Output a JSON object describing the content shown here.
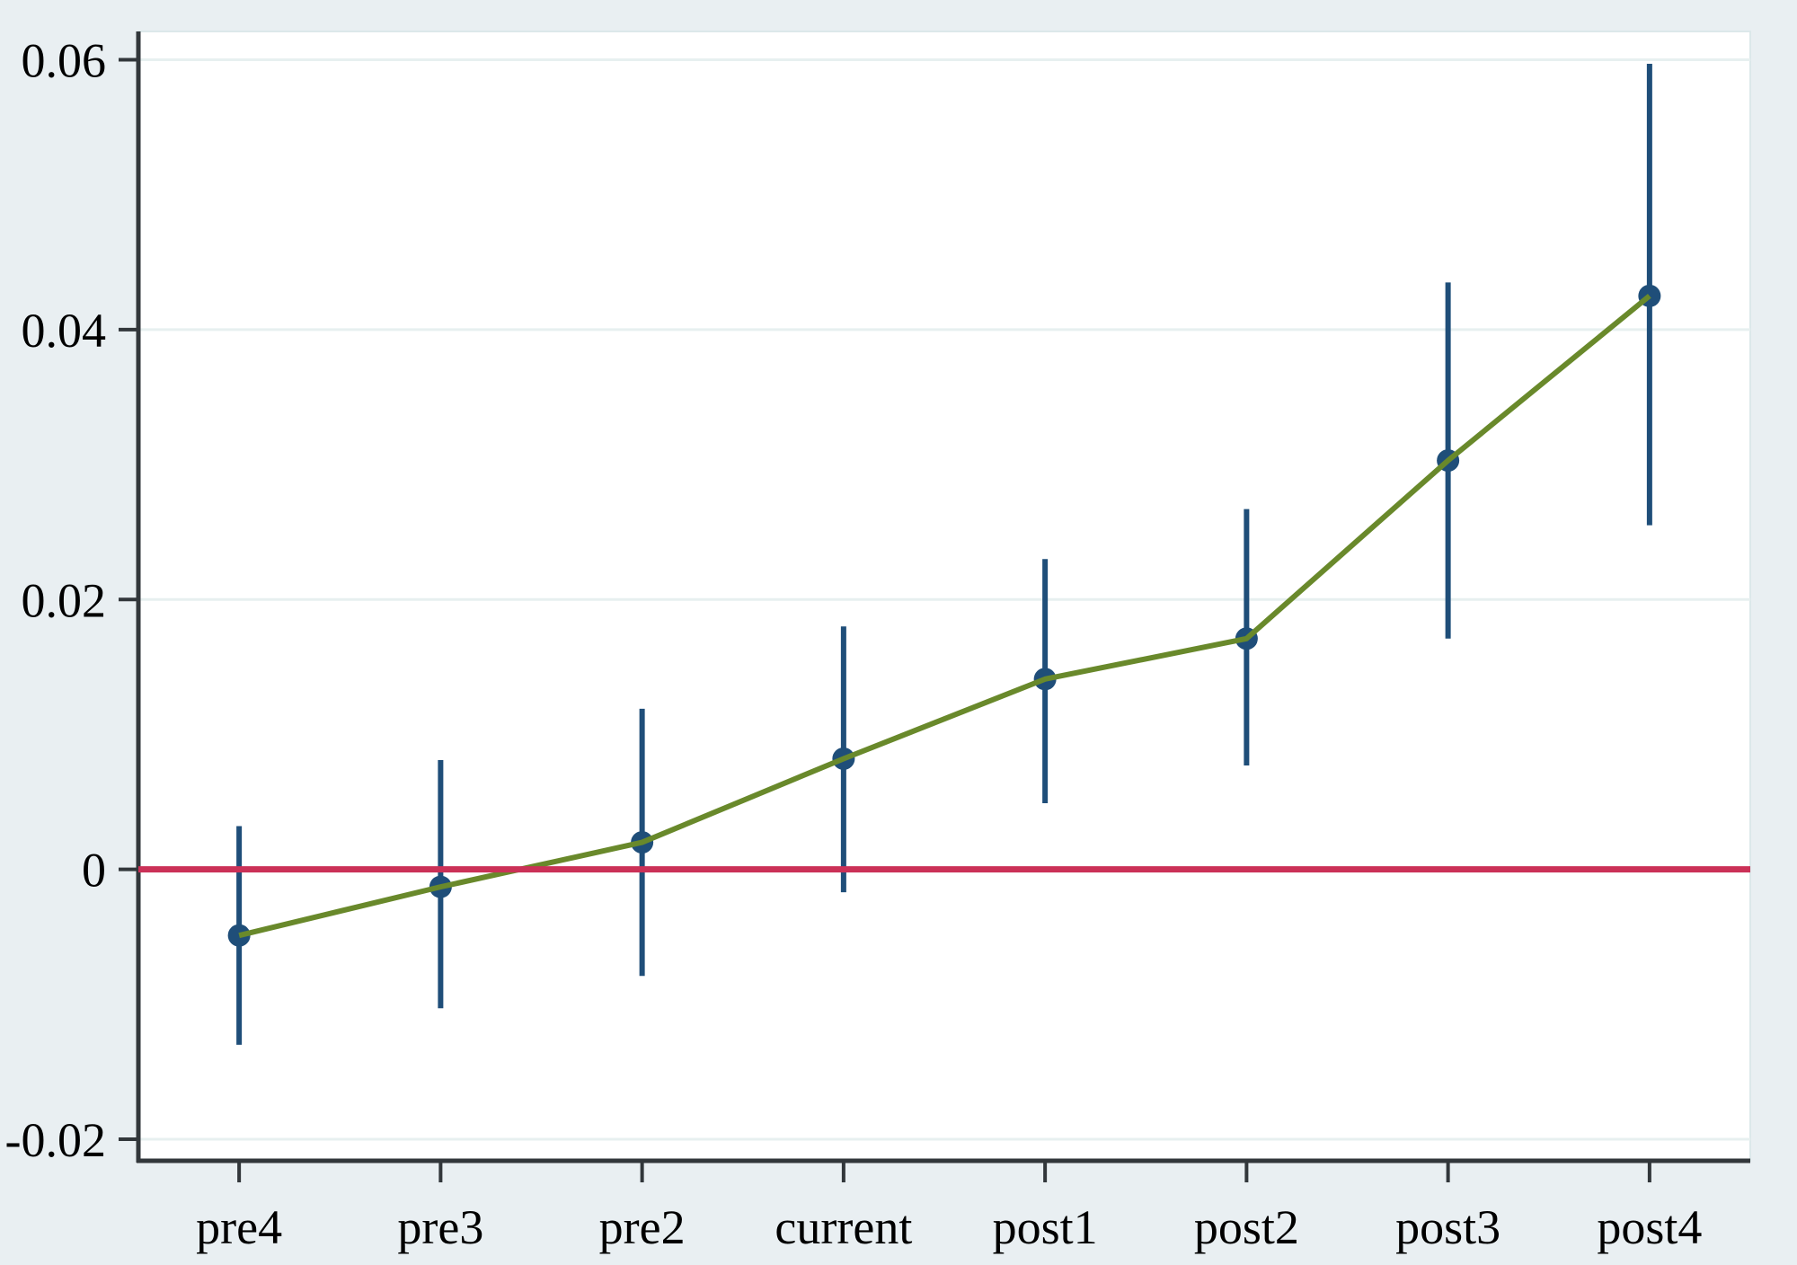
{
  "chart_data": {
    "type": "line",
    "subtype": "event-study-with-confidence-intervals",
    "title": "",
    "xlabel": "",
    "ylabel": "",
    "grid": true,
    "legend": "none",
    "categories": [
      "pre4",
      "pre3",
      "pre2",
      "current",
      "post1",
      "post2",
      "post3",
      "post4"
    ],
    "series": [
      {
        "name": "coefficient-estimate",
        "values": [
          -0.0049,
          -0.0013,
          0.002,
          0.0082,
          0.0141,
          0.0171,
          0.0303,
          0.0425
        ],
        "ci_low": [
          -0.013,
          -0.0103,
          -0.0079,
          -0.0017,
          0.0049,
          0.0077,
          0.0171,
          0.0255
        ],
        "ci_high": [
          0.0032,
          0.0081,
          0.0119,
          0.018,
          0.023,
          0.0267,
          0.0435,
          0.0597
        ]
      }
    ],
    "reference_line_y": 0,
    "y_ticks": [
      -0.02,
      0,
      0.02,
      0.04,
      0.06
    ],
    "y_tick_labels": [
      "-0.02",
      "0",
      "0.02",
      "0.04",
      "0.06"
    ],
    "ylim": [
      -0.0216,
      0.0621
    ],
    "colors": {
      "canvas_bg": "#e9eff2",
      "plot_bg": "#ffffff",
      "plot_border": "#dce8ea",
      "gridline": "#e7f0f0",
      "axis": "#32373b",
      "text": "#000000",
      "ci_bar": "#1f4e79",
      "marker": "#1f4e79",
      "trend_line": "#69892b",
      "reference_line": "#cb3157"
    }
  }
}
